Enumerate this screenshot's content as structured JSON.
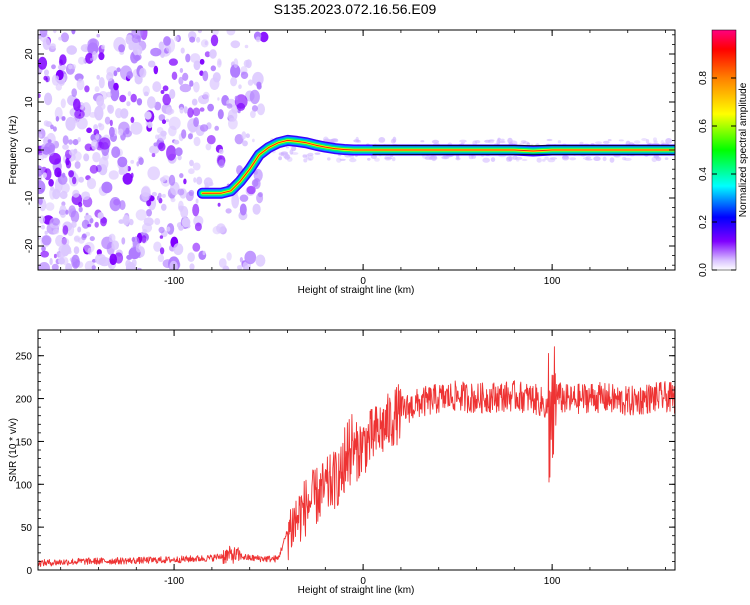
{
  "figure": {
    "title": "S135.2023.072.16.56.E09"
  },
  "chart_data": [
    {
      "type": "heatmap",
      "ylabel": "Frequency (Hz)",
      "xlabel": "Height of straight line (km)",
      "xlim": [
        -172,
        165
      ],
      "ylim": [
        -25,
        25
      ],
      "xticks": [
        -100,
        0,
        100
      ],
      "yticks": [
        -20,
        -10,
        0,
        10,
        20
      ],
      "colorbar": {
        "label": "Normalized spectral amplitude",
        "range": [
          0,
          1
        ],
        "ticks": [
          "0.0",
          "0.2",
          "0.4",
          "0.6",
          "0.8"
        ],
        "colormap": [
          "#ffffff",
          "#7f00ff",
          "#0000ff",
          "#00ffff",
          "#00ff00",
          "#ffff00",
          "#ff8000",
          "#ff0000",
          "#ff007f"
        ]
      },
      "noise_region_km": [
        -172,
        -52
      ],
      "signal_trace": {
        "x": [
          -85,
          -80,
          -75,
          -70,
          -65,
          -60,
          -55,
          -50,
          -45,
          -40,
          -35,
          -30,
          -25,
          -20,
          -15,
          -10,
          -5,
          0,
          20,
          40,
          60,
          80,
          90,
          100,
          120,
          140,
          160,
          165
        ],
        "y": [
          -9,
          -9,
          -9,
          -8.5,
          -6.5,
          -4,
          -1,
          0.5,
          1.5,
          2,
          1.8,
          1.5,
          1,
          0.6,
          0.3,
          0.1,
          0,
          0,
          0,
          0,
          0,
          0,
          -0.2,
          0,
          0,
          0,
          0,
          0
        ]
      }
    },
    {
      "type": "line",
      "ylabel": "SNR (10 * v/v)",
      "xlabel": "Height of straight line (km)",
      "xlim": [
        -172,
        165
      ],
      "ylim": [
        0,
        280
      ],
      "xticks": [
        -100,
        0,
        100
      ],
      "yticks": [
        0,
        50,
        100,
        150,
        200,
        250
      ],
      "color": "#ee3333",
      "series": [
        {
          "x": [
            -172,
            -150,
            -120,
            -100,
            -80,
            -70,
            -60,
            -50,
            -45,
            -40,
            -35,
            -30,
            -20,
            -10,
            -5,
            0,
            10,
            20,
            30,
            40,
            50,
            60,
            70,
            80,
            90,
            95,
            100,
            102,
            105,
            110,
            120,
            130,
            140,
            150,
            160,
            165
          ],
          "y": [
            8,
            10,
            11,
            12,
            14,
            18,
            14,
            13,
            13,
            45,
            60,
            75,
            95,
            115,
            135,
            145,
            165,
            185,
            195,
            200,
            203,
            200,
            202,
            203,
            200,
            195,
            180,
            205,
            200,
            198,
            202,
            200,
            196,
            200,
            202,
            200
          ]
        }
      ]
    }
  ]
}
